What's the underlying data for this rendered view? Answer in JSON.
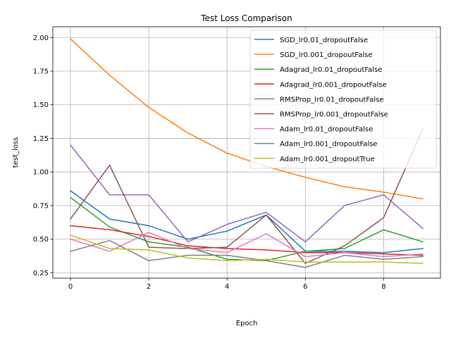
{
  "chart_data": {
    "type": "line",
    "title": "Test Loss Comparison",
    "xlabel": "Epoch",
    "ylabel": "test_loss",
    "x": [
      0,
      1,
      2,
      3,
      4,
      5,
      6,
      7,
      8,
      9
    ],
    "xlim": [
      -0.45,
      9.45
    ],
    "ylim": [
      0.21,
      2.08
    ],
    "xticks": [
      0,
      2,
      4,
      6,
      8
    ],
    "yticks": [
      0.25,
      0.5,
      0.75,
      1.0,
      1.25,
      1.5,
      1.75,
      2.0
    ],
    "ytick_labels": [
      "0.25",
      "0.50",
      "0.75",
      "1.00",
      "1.25",
      "1.50",
      "1.75",
      "2.00"
    ],
    "grid": true,
    "legend_position": "top-right",
    "series": [
      {
        "name": "SGD_lr0.01_dropoutFalse",
        "color": "#1f77b4",
        "values": [
          0.86,
          0.65,
          0.6,
          0.5,
          0.56,
          0.68,
          0.41,
          0.41,
          0.4,
          0.43
        ]
      },
      {
        "name": "SGD_lr0.001_dropoutFalse",
        "color": "#ff7f0e",
        "values": [
          1.99,
          1.72,
          1.48,
          1.29,
          1.14,
          1.04,
          0.96,
          0.89,
          0.85,
          0.8
        ]
      },
      {
        "name": "Adagrad_lr0.01_dropoutFalse",
        "color": "#2ca02c",
        "values": [
          0.81,
          0.59,
          0.48,
          0.44,
          0.35,
          0.34,
          0.41,
          0.43,
          0.57,
          0.48
        ]
      },
      {
        "name": "Adagrad_lr0.001_dropoutFalse",
        "color": "#d62728",
        "values": [
          0.6,
          0.57,
          0.52,
          0.45,
          0.43,
          0.42,
          0.4,
          0.4,
          0.39,
          0.38
        ]
      },
      {
        "name": "RMSProp_lr0.01_dropoutFalse",
        "color": "#9467bd",
        "values": [
          1.2,
          0.83,
          0.83,
          0.48,
          0.61,
          0.7,
          0.48,
          0.75,
          0.83,
          0.58
        ]
      },
      {
        "name": "RMSProp_lr0.001_dropoutFalse",
        "color": "#8c564b",
        "values": [
          0.65,
          1.05,
          0.44,
          0.43,
          0.44,
          0.68,
          0.32,
          0.45,
          0.66,
          1.32
        ]
      },
      {
        "name": "Adam_lr0.01_dropoutFalse",
        "color": "#e377c2",
        "values": [
          0.5,
          0.41,
          0.55,
          0.43,
          0.4,
          0.54,
          0.37,
          0.4,
          0.37,
          0.39
        ]
      },
      {
        "name": "Adam_lr0.001_dropoutFalse",
        "color": "#7f7f7f",
        "values": [
          0.41,
          0.49,
          0.34,
          0.38,
          0.38,
          0.34,
          0.29,
          0.38,
          0.35,
          0.37
        ]
      },
      {
        "name": "Adam_lr0.001_dropoutTrue",
        "color": "#bcbd22",
        "values": [
          0.53,
          0.43,
          0.42,
          0.36,
          0.34,
          0.35,
          0.33,
          0.33,
          0.33,
          0.32
        ]
      }
    ]
  }
}
